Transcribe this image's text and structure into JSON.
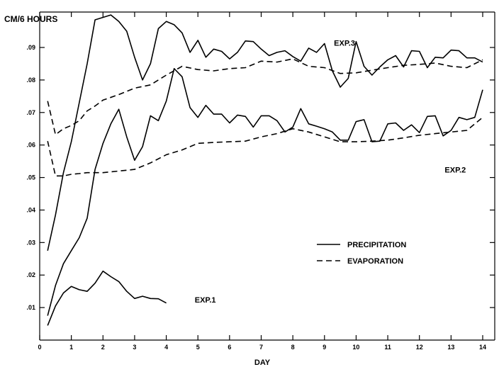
{
  "chart_data": {
    "type": "line",
    "ylabel": "CM/6 HOURS",
    "xlabel": "DAY",
    "xlim": [
      0,
      14
    ],
    "ylim": [
      0.0,
      0.1
    ],
    "x_ticks": [
      0,
      1,
      2,
      3,
      4,
      5,
      6,
      7,
      8,
      9,
      10,
      11,
      12,
      13,
      14
    ],
    "x_tick_labels": [
      "0",
      "1",
      "2",
      "3",
      "4",
      "5",
      "6",
      "7",
      "8",
      "9",
      "10",
      "11",
      "12",
      "13",
      "14"
    ],
    "y_ticks": [
      0.01,
      0.02,
      0.03,
      0.04,
      0.05,
      0.06,
      0.07,
      0.08,
      0.09
    ],
    "y_tick_labels": [
      ".01",
      ".02",
      ".03",
      ".04",
      ".05",
      ".06",
      ".07",
      ".08",
      ".09"
    ],
    "legend": {
      "placement": "center-right",
      "entries": [
        {
          "label": "PRECIPITATION",
          "style": "solid"
        },
        {
          "label": "EVAPORATION",
          "style": "dashed"
        }
      ]
    },
    "annotations": [
      {
        "text": "EXP.1",
        "x": 4.9,
        "y": 0.0115
      },
      {
        "text": "EXP.2",
        "x": 12.8,
        "y": 0.0515
      },
      {
        "text": "EXP.3",
        "x": 9.3,
        "y": 0.0905
      }
    ],
    "series": [
      {
        "style": "solid",
        "points": [
          [
            0.25,
            0.0045
          ],
          [
            0.5,
            0.0105
          ],
          [
            0.75,
            0.0145
          ],
          [
            1.0,
            0.0165
          ],
          [
            1.25,
            0.0155
          ],
          [
            1.5,
            0.015
          ],
          [
            1.75,
            0.0175
          ],
          [
            2.0,
            0.0212
          ],
          [
            2.25,
            0.0195
          ],
          [
            2.5,
            0.018
          ],
          [
            2.75,
            0.015
          ],
          [
            3.0,
            0.0128
          ],
          [
            3.25,
            0.0135
          ],
          [
            3.5,
            0.0128
          ],
          [
            3.75,
            0.0127
          ],
          [
            4.0,
            0.0114
          ]
        ]
      },
      {
        "style": "solid",
        "points": [
          [
            0.25,
            0.0075
          ],
          [
            0.5,
            0.0168
          ],
          [
            0.75,
            0.0235
          ],
          [
            1.0,
            0.0275
          ],
          [
            1.25,
            0.0315
          ],
          [
            1.5,
            0.0375
          ],
          [
            1.75,
            0.0525
          ],
          [
            2.0,
            0.0605
          ],
          [
            2.25,
            0.0665
          ],
          [
            2.5,
            0.071
          ],
          [
            2.75,
            0.0625
          ],
          [
            3.0,
            0.0553
          ],
          [
            3.25,
            0.0595
          ],
          [
            3.5,
            0.069
          ],
          [
            3.75,
            0.0675
          ],
          [
            4.0,
            0.0735
          ],
          [
            4.25,
            0.0835
          ],
          [
            4.5,
            0.081
          ],
          [
            4.75,
            0.0715
          ],
          [
            5.0,
            0.0685
          ],
          [
            5.25,
            0.0722
          ],
          [
            5.5,
            0.0695
          ],
          [
            5.75,
            0.0695
          ],
          [
            6.0,
            0.0668
          ],
          [
            6.25,
            0.0692
          ],
          [
            6.5,
            0.0688
          ],
          [
            6.75,
            0.0655
          ],
          [
            7.0,
            0.069
          ],
          [
            7.25,
            0.069
          ],
          [
            7.5,
            0.0675
          ],
          [
            7.75,
            0.064
          ],
          [
            8.0,
            0.0655
          ],
          [
            8.25,
            0.0712
          ],
          [
            8.5,
            0.0665
          ],
          [
            8.75,
            0.0658
          ],
          [
            9.0,
            0.065
          ],
          [
            9.25,
            0.064
          ],
          [
            9.5,
            0.0615
          ],
          [
            9.75,
            0.0615
          ],
          [
            10.0,
            0.0672
          ],
          [
            10.25,
            0.0678
          ],
          [
            10.5,
            0.061
          ],
          [
            10.75,
            0.0612
          ],
          [
            11.0,
            0.0665
          ],
          [
            11.25,
            0.0668
          ],
          [
            11.5,
            0.0645
          ],
          [
            11.75,
            0.0662
          ],
          [
            12.0,
            0.0638
          ],
          [
            12.25,
            0.0688
          ],
          [
            12.5,
            0.069
          ],
          [
            12.75,
            0.0628
          ],
          [
            13.0,
            0.0645
          ],
          [
            13.25,
            0.0685
          ],
          [
            13.5,
            0.0678
          ],
          [
            13.75,
            0.0685
          ],
          [
            14.0,
            0.077
          ]
        ]
      },
      {
        "style": "solid",
        "points": [
          [
            0.25,
            0.0275
          ],
          [
            0.5,
            0.0385
          ],
          [
            0.75,
            0.0515
          ],
          [
            1.0,
            0.061
          ],
          [
            1.25,
            0.073
          ],
          [
            1.5,
            0.085
          ],
          [
            1.75,
            0.0985
          ],
          [
            2.25,
            0.1
          ],
          [
            2.5,
            0.098
          ],
          [
            2.75,
            0.095
          ],
          [
            3.0,
            0.087
          ],
          [
            3.25,
            0.08
          ],
          [
            3.5,
            0.085
          ],
          [
            3.75,
            0.0958
          ],
          [
            4.0,
            0.098
          ],
          [
            4.25,
            0.097
          ],
          [
            4.5,
            0.0945
          ],
          [
            4.75,
            0.0885
          ],
          [
            5.0,
            0.0922
          ],
          [
            5.25,
            0.087
          ],
          [
            5.5,
            0.0895
          ],
          [
            5.75,
            0.0888
          ],
          [
            6.0,
            0.0865
          ],
          [
            6.25,
            0.0885
          ],
          [
            6.5,
            0.092
          ],
          [
            6.75,
            0.0918
          ],
          [
            7.0,
            0.0895
          ],
          [
            7.25,
            0.0875
          ],
          [
            7.5,
            0.0885
          ],
          [
            7.75,
            0.089
          ],
          [
            8.0,
            0.0872
          ],
          [
            8.25,
            0.0858
          ],
          [
            8.5,
            0.0898
          ],
          [
            8.75,
            0.0885
          ],
          [
            9.0,
            0.0912
          ],
          [
            9.25,
            0.0828
          ],
          [
            9.5,
            0.0778
          ],
          [
            9.75,
            0.0805
          ],
          [
            10.0,
            0.0918
          ],
          [
            10.25,
            0.0842
          ],
          [
            10.5,
            0.0815
          ],
          [
            10.75,
            0.084
          ],
          [
            11.0,
            0.0862
          ],
          [
            11.25,
            0.0875
          ],
          [
            11.5,
            0.084
          ],
          [
            11.75,
            0.089
          ],
          [
            12.0,
            0.0888
          ],
          [
            12.25,
            0.0838
          ],
          [
            12.5,
            0.087
          ],
          [
            12.75,
            0.0868
          ],
          [
            13.0,
            0.0892
          ],
          [
            13.25,
            0.089
          ],
          [
            13.5,
            0.0868
          ],
          [
            13.75,
            0.0868
          ],
          [
            14.0,
            0.0855
          ]
        ]
      },
      {
        "style": "dashed",
        "points": [
          [
            0.25,
            0.0612
          ],
          [
            0.5,
            0.0505
          ],
          [
            0.75,
            0.0505
          ],
          [
            1.0,
            0.051
          ],
          [
            1.25,
            0.0512
          ],
          [
            1.5,
            0.0515
          ],
          [
            2.0,
            0.0515
          ],
          [
            2.5,
            0.052
          ],
          [
            3.0,
            0.0525
          ],
          [
            3.5,
            0.0545
          ],
          [
            4.0,
            0.057
          ],
          [
            4.5,
            0.0585
          ],
          [
            5.0,
            0.0605
          ],
          [
            5.5,
            0.0608
          ],
          [
            6.0,
            0.061
          ],
          [
            6.5,
            0.0612
          ],
          [
            7.0,
            0.0625
          ],
          [
            7.5,
            0.0635
          ],
          [
            8.0,
            0.065
          ],
          [
            8.5,
            0.064
          ],
          [
            9.0,
            0.0625
          ],
          [
            9.5,
            0.061
          ],
          [
            10.0,
            0.061
          ],
          [
            10.5,
            0.0612
          ],
          [
            11.0,
            0.0615
          ],
          [
            11.5,
            0.0622
          ],
          [
            12.0,
            0.063
          ],
          [
            12.5,
            0.0635
          ],
          [
            13.0,
            0.064
          ],
          [
            13.5,
            0.0645
          ],
          [
            14.0,
            0.0685
          ]
        ]
      },
      {
        "style": "dashed",
        "points": [
          [
            0.25,
            0.0735
          ],
          [
            0.5,
            0.0632
          ],
          [
            0.75,
            0.065
          ],
          [
            1.0,
            0.066
          ],
          [
            1.25,
            0.0675
          ],
          [
            1.5,
            0.0705
          ],
          [
            1.75,
            0.072
          ],
          [
            2.0,
            0.0738
          ],
          [
            2.5,
            0.0755
          ],
          [
            3.0,
            0.0775
          ],
          [
            3.5,
            0.0785
          ],
          [
            4.0,
            0.0815
          ],
          [
            4.5,
            0.0842
          ],
          [
            5.0,
            0.0832
          ],
          [
            5.5,
            0.0828
          ],
          [
            6.0,
            0.0835
          ],
          [
            6.5,
            0.0838
          ],
          [
            7.0,
            0.0858
          ],
          [
            7.5,
            0.0855
          ],
          [
            8.0,
            0.0865
          ],
          [
            8.5,
            0.0842
          ],
          [
            9.0,
            0.0838
          ],
          [
            9.5,
            0.082
          ],
          [
            10.0,
            0.0822
          ],
          [
            10.5,
            0.083
          ],
          [
            11.0,
            0.0838
          ],
          [
            11.5,
            0.0845
          ],
          [
            12.0,
            0.0848
          ],
          [
            12.5,
            0.0852
          ],
          [
            13.0,
            0.0842
          ],
          [
            13.5,
            0.0838
          ],
          [
            14.0,
            0.0862
          ]
        ]
      }
    ]
  }
}
